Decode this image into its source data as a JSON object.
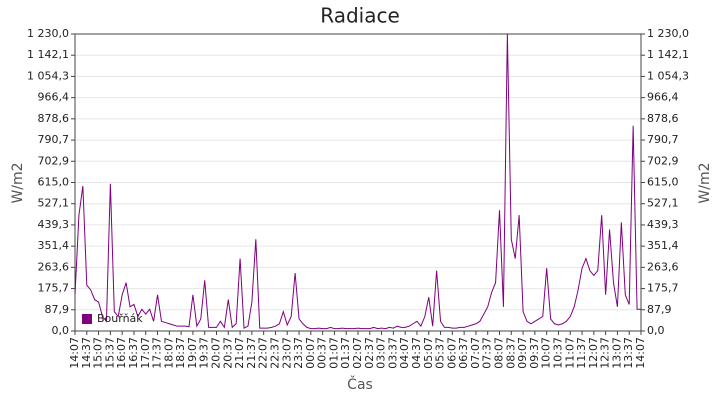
{
  "chart_data": {
    "type": "line",
    "title": "Radiace",
    "xlabel": "Čas",
    "ylabel": "W/m2",
    "y2label": "W/m2",
    "x": [
      "14:07",
      "14:17",
      "14:27",
      "14:37",
      "14:47",
      "14:57",
      "15:07",
      "15:17",
      "15:27",
      "15:37",
      "15:47",
      "15:57",
      "16:07",
      "16:17",
      "16:27",
      "16:37",
      "16:47",
      "16:57",
      "17:07",
      "17:17",
      "17:27",
      "17:37",
      "17:47",
      "17:57",
      "18:07",
      "18:17",
      "18:27",
      "18:37",
      "18:47",
      "18:57",
      "19:07",
      "19:17",
      "19:27",
      "19:37",
      "19:47",
      "19:57",
      "20:07",
      "20:17",
      "20:27",
      "20:37",
      "20:47",
      "20:57",
      "21:07",
      "21:17",
      "21:27",
      "21:37",
      "21:47",
      "21:57",
      "22:07",
      "22:17",
      "22:27",
      "22:37",
      "22:47",
      "22:57",
      "23:07",
      "23:17",
      "23:27",
      "23:37",
      "23:47",
      "23:57",
      "00:07",
      "00:17",
      "00:27",
      "00:37",
      "00:47",
      "00:57",
      "01:07",
      "01:17",
      "01:27",
      "01:37",
      "01:47",
      "01:57",
      "02:07",
      "02:17",
      "02:27",
      "02:37",
      "02:47",
      "02:57",
      "03:07",
      "03:17",
      "03:27",
      "03:37",
      "03:47",
      "03:57",
      "04:07",
      "04:17",
      "04:27",
      "04:37",
      "04:47",
      "04:57",
      "05:07",
      "05:17",
      "05:27",
      "05:37",
      "05:47",
      "05:57",
      "06:07",
      "06:17",
      "06:27",
      "06:37",
      "06:47",
      "06:57",
      "07:07",
      "07:17",
      "07:27",
      "07:37",
      "07:47",
      "07:57",
      "08:07",
      "08:17",
      "08:27",
      "08:37",
      "08:47",
      "08:57",
      "09:07",
      "09:17",
      "09:27",
      "09:37",
      "09:47",
      "09:57",
      "10:07",
      "10:17",
      "10:27",
      "10:37",
      "10:47",
      "10:57",
      "11:07",
      "11:17",
      "11:27",
      "11:37",
      "11:47",
      "11:57",
      "12:07",
      "12:17",
      "12:27",
      "12:37",
      "12:47",
      "12:57",
      "13:07",
      "13:17",
      "13:27",
      "13:37",
      "13:47",
      "13:57",
      "14:07"
    ],
    "xticks": [
      "14:07",
      "14:37",
      "15:07",
      "15:37",
      "16:07",
      "16:37",
      "17:07",
      "17:37",
      "18:07",
      "18:37",
      "19:07",
      "19:37",
      "20:07",
      "20:37",
      "21:07",
      "21:37",
      "22:07",
      "22:37",
      "23:07",
      "23:37",
      "00:07",
      "00:37",
      "01:07",
      "01:37",
      "02:07",
      "02:37",
      "03:07",
      "03:37",
      "04:07",
      "04:37",
      "05:07",
      "05:37",
      "06:07",
      "06:37",
      "07:07",
      "07:37",
      "08:07",
      "08:37",
      "09:07",
      "09:37",
      "10:07",
      "10:37",
      "11:07",
      "11:37",
      "12:07",
      "12:37",
      "13:07",
      "13:37",
      "14:07"
    ],
    "series": [
      {
        "name": "Bouřňák",
        "color": "#800080",
        "values": [
          150,
          480,
          600,
          190,
          170,
          130,
          120,
          60,
          40,
          610,
          80,
          60,
          150,
          200,
          100,
          110,
          60,
          90,
          70,
          90,
          40,
          150,
          40,
          35,
          30,
          25,
          20,
          20,
          20,
          18,
          150,
          20,
          50,
          210,
          15,
          15,
          15,
          40,
          15,
          130,
          15,
          30,
          300,
          12,
          20,
          120,
          380,
          12,
          12,
          12,
          15,
          20,
          30,
          80,
          25,
          60,
          240,
          50,
          30,
          15,
          10,
          10,
          12,
          10,
          10,
          15,
          10,
          10,
          12,
          10,
          10,
          10,
          12,
          10,
          10,
          10,
          15,
          10,
          12,
          10,
          15,
          12,
          20,
          15,
          15,
          20,
          30,
          40,
          20,
          60,
          140,
          20,
          250,
          40,
          15,
          15,
          12,
          12,
          15,
          15,
          20,
          25,
          30,
          40,
          70,
          100,
          160,
          200,
          500,
          100,
          1230,
          380,
          300,
          480,
          80,
          40,
          30,
          40,
          50,
          60,
          260,
          50,
          30,
          25,
          30,
          40,
          60,
          100,
          170,
          260,
          300,
          250,
          230,
          250,
          480,
          150,
          420,
          200,
          100,
          450,
          150,
          110,
          850,
          90,
          90
        ]
      }
    ],
    "ylim": [
      0,
      1230
    ],
    "yticks": [
      {
        "value": 0,
        "label": "0,0"
      },
      {
        "value": 87.9,
        "label": "87,9"
      },
      {
        "value": 175.7,
        "label": "175,7"
      },
      {
        "value": 263.6,
        "label": "263,6"
      },
      {
        "value": 351.4,
        "label": "351,4"
      },
      {
        "value": 439.3,
        "label": "439,3"
      },
      {
        "value": 527.1,
        "label": "527,1"
      },
      {
        "value": 615,
        "label": "615,0"
      },
      {
        "value": 702.9,
        "label": "702,9"
      },
      {
        "value": 790.7,
        "label": "790,7"
      },
      {
        "value": 878.6,
        "label": "878,6"
      },
      {
        "value": 966.4,
        "label": "966,4"
      },
      {
        "value": 1054.3,
        "label": "1 054,3"
      },
      {
        "value": 1142.1,
        "label": "1 142,1"
      },
      {
        "value": 1230,
        "label": "1 230,0"
      }
    ],
    "grid": true,
    "legend": "lower left"
  }
}
